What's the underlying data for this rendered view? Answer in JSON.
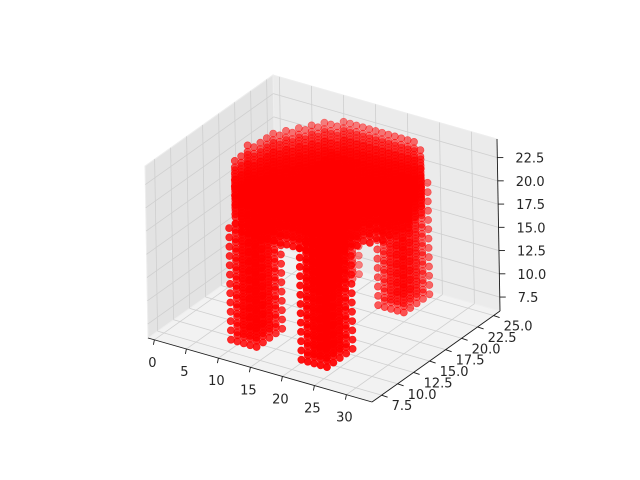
{
  "chart_data": {
    "type": "scatter",
    "projection": "3d",
    "title": "",
    "xlabel": "",
    "ylabel": "",
    "zlabel": "",
    "grid": true,
    "legend": "none",
    "marker_color": "#ff0000",
    "xlim": [
      -1,
      34
    ],
    "ylim": [
      6,
      26
    ],
    "zlim": [
      6,
      24.5
    ],
    "x_ticks": [
      "0",
      "5",
      "10",
      "15",
      "20",
      "25",
      "30"
    ],
    "y_ticks": [
      "7.5",
      "10.0",
      "12.5",
      "15.0",
      "17.5",
      "20.0",
      "22.5",
      "25.0"
    ],
    "z_ticks": [
      "7.5",
      "10.0",
      "12.5",
      "15.0",
      "17.5",
      "20.0",
      "22.5"
    ],
    "shape": "voxelized stool: oval seat at z 19 to 23 spanning x 5 to 30 and y 7 to 25, with two visible legs down to z 7",
    "seat": {
      "center_x": 17.5,
      "center_y": 16,
      "radius_x": 12.5,
      "radius_y": 9,
      "z": [
        19,
        23
      ]
    },
    "legs": [
      {
        "x": [
          10,
          14
        ],
        "y": [
          8,
          12
        ],
        "z": [
          7,
          19
        ]
      },
      {
        "x": [
          21,
          25
        ],
        "y": [
          8,
          12
        ],
        "z": [
          7,
          19
        ]
      },
      {
        "x": [
          10,
          14
        ],
        "y": [
          20,
          24
        ],
        "z": [
          7,
          19
        ]
      },
      {
        "x": [
          21,
          25
        ],
        "y": [
          20,
          24
        ],
        "z": [
          7,
          19
        ]
      }
    ]
  }
}
